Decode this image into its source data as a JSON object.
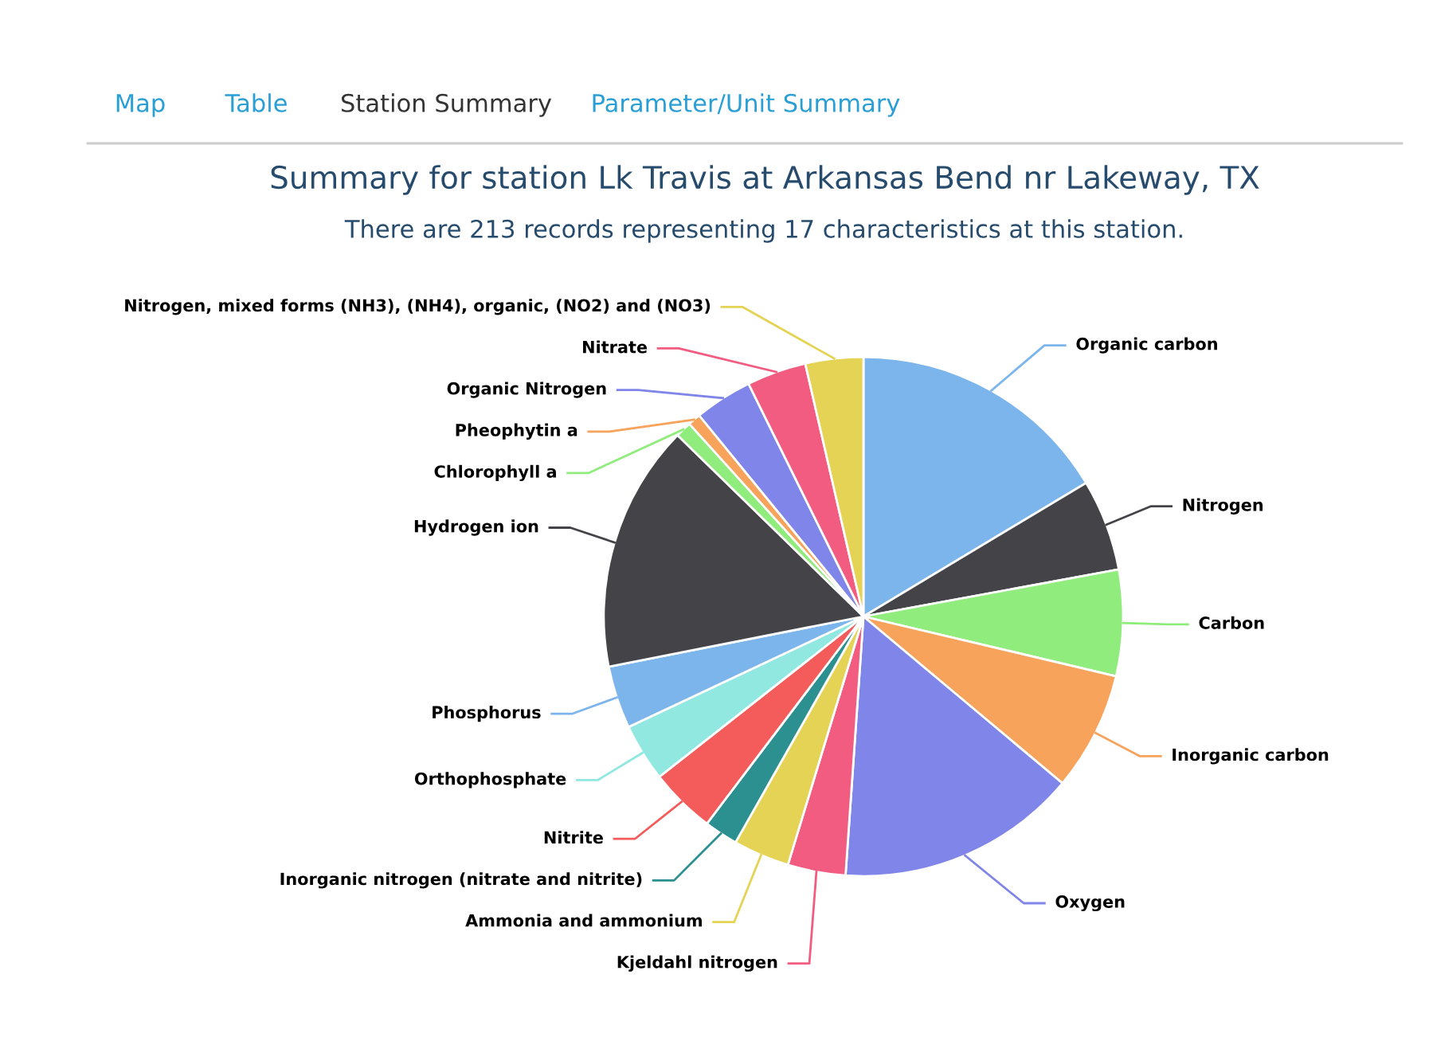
{
  "chart_data": {
    "type": "pie",
    "title": "Summary for station Lk Travis at Arkansas Bend nr Lakeway, TX",
    "subtitle": "There are 213 records representing 17 characteristics at this station.",
    "annotations": [
      "Map",
      "Table",
      "Station Summary",
      "Parameter/Unit Summary"
    ],
    "categories": [
      "Organic carbon",
      "Nitrogen",
      "Carbon",
      "Inorganic carbon",
      "Oxygen",
      "Kjeldahl nitrogen",
      "Ammonia and ammonium",
      "Inorganic nitrogen (nitrate and nitrite)",
      "Nitrite",
      "Orthophosphate",
      "Phosphorus",
      "Hydrogen ion",
      "Chlorophyll a",
      "Pheophytin a",
      "Organic Nitrogen",
      "Nitrate",
      "Nitrogen, mixed forms (NH3), (NH4), organic, (NO2) and (NO3)"
    ],
    "values": [
      16.4,
      5.7,
      6.6,
      7.4,
      15.0,
      3.6,
      3.5,
      2.1,
      4.1,
      3.6,
      3.9,
      15.4,
      1.0,
      0.8,
      3.6,
      3.7,
      3.6
    ],
    "colors": [
      "#7cb5ec",
      "#434348",
      "#90ed7d",
      "#f7a35c",
      "#8085e9",
      "#f15c80",
      "#e4d354",
      "#2b908f",
      "#f45b5b",
      "#91e8e1",
      "#7cb5ec",
      "#434348",
      "#90ed7d",
      "#f7a35c",
      "#8085e9",
      "#f15c80",
      "#e4d354"
    ]
  }
}
